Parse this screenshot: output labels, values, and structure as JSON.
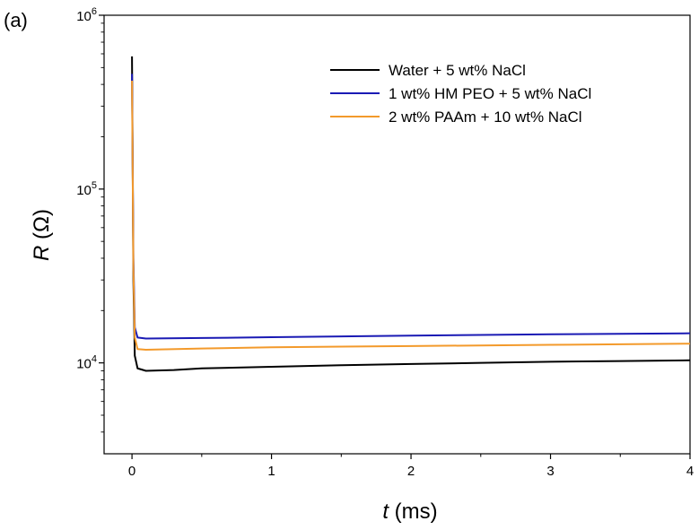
{
  "chart_data": {
    "type": "line",
    "panel_label": "(a)",
    "xlabel": {
      "symbol": "t",
      "unit": " (ms)"
    },
    "ylabel": {
      "symbol": "R",
      "unit": " (Ω)"
    },
    "xlim": [
      -0.2,
      4
    ],
    "ylim": [
      3000,
      1000000
    ],
    "yscale": "log",
    "grid": false,
    "legend_position": "top-right",
    "x_ticks": [
      0,
      1,
      2,
      3,
      4
    ],
    "x_tick_labels": [
      "0",
      "1",
      "2",
      "3",
      "4"
    ],
    "y_ticks": [
      {
        "value": 10000,
        "base": "10",
        "exp": "4"
      },
      {
        "value": 100000,
        "base": "10",
        "exp": "5"
      },
      {
        "value": 1000000,
        "base": "10",
        "exp": "6"
      }
    ],
    "series": [
      {
        "name": "Water + 5 wt% NaCl",
        "color": "#000000",
        "points": [
          [
            0,
            580000
          ],
          [
            0.01,
            30000
          ],
          [
            0.02,
            11000
          ],
          [
            0.04,
            9300
          ],
          [
            0.1,
            9000
          ],
          [
            0.3,
            9100
          ],
          [
            0.5,
            9300
          ],
          [
            1,
            9500
          ],
          [
            1.5,
            9700
          ],
          [
            2,
            9850
          ],
          [
            2.5,
            10000
          ],
          [
            3,
            10150
          ],
          [
            3.5,
            10250
          ],
          [
            4,
            10350
          ]
        ]
      },
      {
        "name": "1 wt% HM PEO + 5 wt% NaCl",
        "color": "#1a1ab4",
        "points": [
          [
            0,
            460000
          ],
          [
            0.01,
            40000
          ],
          [
            0.02,
            16000
          ],
          [
            0.04,
            14000
          ],
          [
            0.1,
            13800
          ],
          [
            0.5,
            13900
          ],
          [
            1,
            14050
          ],
          [
            2,
            14350
          ],
          [
            3,
            14600
          ],
          [
            4,
            14800
          ]
        ]
      },
      {
        "name": "2 wt% PAAm + 10 wt% NaCl",
        "color": "#f39a2b",
        "points": [
          [
            0,
            420000
          ],
          [
            0.01,
            35000
          ],
          [
            0.02,
            14000
          ],
          [
            0.04,
            12000
          ],
          [
            0.1,
            11900
          ],
          [
            0.5,
            12100
          ],
          [
            1,
            12300
          ],
          [
            2,
            12500
          ],
          [
            3,
            12700
          ],
          [
            4,
            12900
          ]
        ]
      }
    ]
  }
}
